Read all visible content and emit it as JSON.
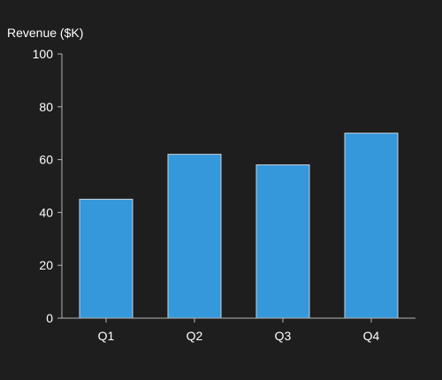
{
  "chart_data": {
    "type": "bar",
    "title": "",
    "xlabel": "",
    "ylabel": "Revenue ($K)",
    "categories": [
      "Q1",
      "Q2",
      "Q3",
      "Q4"
    ],
    "values": [
      45,
      62,
      58,
      70
    ],
    "ylim": [
      0,
      100
    ],
    "yticks": [
      0,
      20,
      40,
      60,
      80,
      100
    ],
    "grid": false,
    "legend": "none"
  },
  "colors": {
    "background": "#1e1e1e",
    "bar_fill": "#3498db",
    "bar_stroke": "#c8d2dc",
    "axis": "#b4b4b4",
    "text": "#ffffff"
  }
}
